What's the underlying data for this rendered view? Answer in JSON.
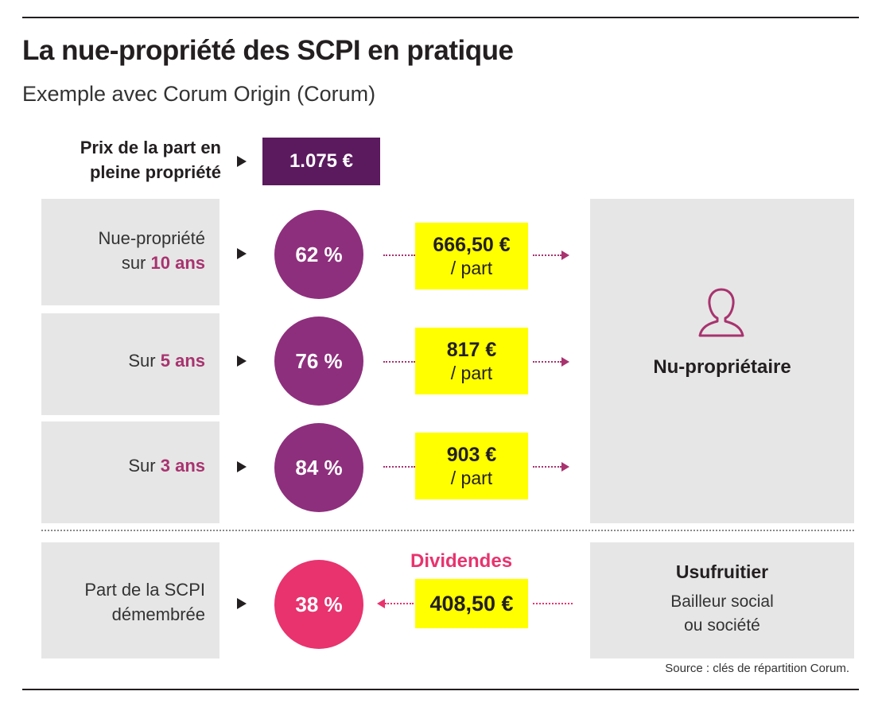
{
  "title": "La nue-propriété des SCPI en pratique",
  "subtitle": "Exemple avec Corum Origin (Corum)",
  "full_price": {
    "label_line1": "Prix de la part en",
    "label_line2": "pleine propriété",
    "value": "1.075 €"
  },
  "rows": [
    {
      "label_line1": "Nue-propriété",
      "label_prefix": "sur ",
      "label_accent": "10 ans",
      "percent": "62 %",
      "amount": "666,50 €",
      "unit": "/ part"
    },
    {
      "label_line1": "",
      "label_prefix": "Sur ",
      "label_accent": "5 ans",
      "percent": "76 %",
      "amount": "817 €",
      "unit": "/ part"
    },
    {
      "label_line1": "",
      "label_prefix": "Sur ",
      "label_accent": "3 ans",
      "percent": "84 %",
      "amount": "903 €",
      "unit": "/ part"
    }
  ],
  "owner": {
    "icon": "person-outline-icon",
    "label": "Nu-propriétaire"
  },
  "dismembered": {
    "label_line1": "Part de la SCPI",
    "label_line2": "démembrée",
    "percent": "38 %",
    "dividends_label": "Dividendes",
    "dividends_amount": "408,50 €"
  },
  "usufructuary": {
    "title": "Usufruitier",
    "line1": "Bailleur social",
    "line2": "ou société"
  },
  "source": "Source : clés de répartition Corum.",
  "colors": {
    "purple_dark": "#5b1a5e",
    "purple": "#8e2f7d",
    "purple_accent": "#a8336f",
    "pink": "#e8336f",
    "yellow": "#ffff00",
    "gray_box": "#e6e6e6"
  }
}
